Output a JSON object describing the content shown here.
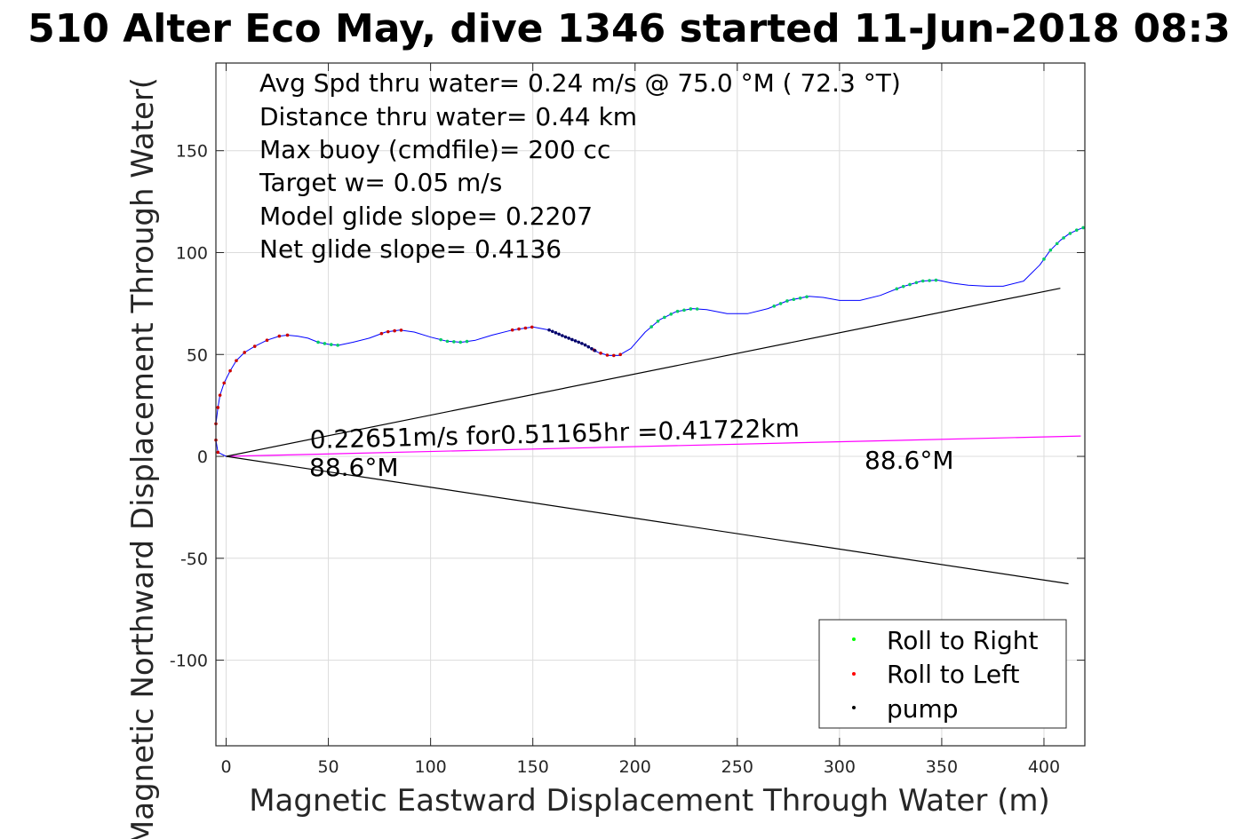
{
  "chart_data": {
    "type": "line",
    "title": "510 Alter Eco May, dive 1346 started 11-Jun-2018 08:3",
    "xlabel": "Magnetic Eastward Displacement Through Water (m)",
    "ylabel": "Magnetic Northward Displacement Through Water(",
    "xlim": [
      -5,
      420
    ],
    "ylim": [
      -142,
      193
    ],
    "xticks": [
      0,
      50,
      100,
      150,
      200,
      250,
      300,
      350,
      400
    ],
    "yticks": [
      -100,
      -50,
      0,
      50,
      100,
      150
    ],
    "grid": true,
    "stats_lines": [
      "Avg Spd thru water=  0.24 m/s @  75.0 °M ( 72.3 °T)",
      "Distance thru water=  0.44 km",
      "Max buoy (cmdfile)= 200 cc",
      "Target w= 0.05 m/s",
      "Model glide slope= 0.2207",
      "Net glide slope= 0.4136"
    ],
    "annotations": {
      "speed_text": "0.22651m/s for0.51165hr =0.41722km",
      "heading_near": "88.6°M",
      "heading_far": "88.6°M"
    },
    "legend": {
      "location": "bottom-right",
      "entries": [
        {
          "label": "Roll to Right",
          "color": "#00ff00"
        },
        {
          "label": "Roll to Left",
          "color": "#ff0000"
        },
        {
          "label": "pump",
          "color": "#000000"
        }
      ]
    },
    "series": [
      {
        "color": "#0000ff",
        "kind": "track",
        "points": [
          [
            0,
            0
          ],
          [
            -4,
            2
          ],
          [
            -5,
            8
          ],
          [
            -5,
            16
          ],
          [
            -4,
            24
          ],
          [
            -3,
            30
          ],
          [
            -1,
            36
          ],
          [
            2,
            42
          ],
          [
            5,
            47
          ],
          [
            9,
            51
          ],
          [
            14,
            54
          ],
          [
            20,
            57
          ],
          [
            26,
            59
          ],
          [
            30,
            59.5
          ],
          [
            35,
            59
          ],
          [
            40,
            58
          ],
          [
            45,
            56
          ],
          [
            50,
            55
          ],
          [
            55,
            54.5
          ],
          [
            62,
            56
          ],
          [
            70,
            58
          ],
          [
            78,
            61
          ],
          [
            85,
            62
          ],
          [
            92,
            61
          ],
          [
            100,
            58.5
          ],
          [
            108,
            56.5
          ],
          [
            115,
            56
          ],
          [
            122,
            57
          ],
          [
            130,
            59.5
          ],
          [
            140,
            62
          ],
          [
            150,
            63.5
          ],
          [
            158,
            62
          ],
          [
            165,
            59
          ],
          [
            175,
            55
          ],
          [
            182,
            51
          ],
          [
            187,
            49.5
          ],
          [
            192,
            49.5
          ],
          [
            198,
            53
          ],
          [
            205,
            61
          ],
          [
            212,
            67
          ],
          [
            220,
            71
          ],
          [
            228,
            72.5
          ],
          [
            235,
            72
          ],
          [
            245,
            70
          ],
          [
            255,
            70
          ],
          [
            265,
            72.5
          ],
          [
            275,
            76.5
          ],
          [
            285,
            78.5
          ],
          [
            292,
            78
          ],
          [
            300,
            76.5
          ],
          [
            310,
            76.5
          ],
          [
            320,
            79
          ],
          [
            330,
            83
          ],
          [
            340,
            86
          ],
          [
            348,
            86.5
          ],
          [
            355,
            85
          ],
          [
            363,
            84
          ],
          [
            372,
            83.5
          ],
          [
            380,
            83.5
          ],
          [
            390,
            86
          ],
          [
            398,
            94
          ],
          [
            403,
            101
          ],
          [
            408,
            106
          ],
          [
            412,
            109
          ],
          [
            416,
            111
          ],
          [
            420,
            112.5
          ]
        ]
      },
      {
        "color": "#ff00ff",
        "kind": "fit-line",
        "points": [
          [
            0,
            0
          ],
          [
            418,
            10
          ]
        ]
      },
      {
        "color": "#000000",
        "kind": "glide-cone-upper",
        "points": [
          [
            0,
            0
          ],
          [
            408,
            82.5
          ]
        ]
      },
      {
        "color": "#000000",
        "kind": "glide-cone-lower",
        "points": [
          [
            0,
            0
          ],
          [
            412,
            -62.5
          ]
        ]
      }
    ],
    "markers": {
      "roll_right": {
        "color": "#00cc66",
        "x_ranges": [
          [
            45,
            56
          ],
          [
            105,
            118
          ],
          [
            208,
            232
          ],
          [
            268,
            287
          ],
          [
            328,
            348
          ],
          [
            400,
            420
          ]
        ]
      },
      "roll_left": {
        "color": "#cc0000",
        "x_ranges": [
          [
            -5,
            28
          ],
          [
            76,
            88
          ],
          [
            140,
            152
          ],
          [
            180,
            193
          ]
        ]
      },
      "pump": {
        "color": "#000066",
        "x_ranges": [
          [
            158,
            181
          ]
        ]
      }
    }
  }
}
